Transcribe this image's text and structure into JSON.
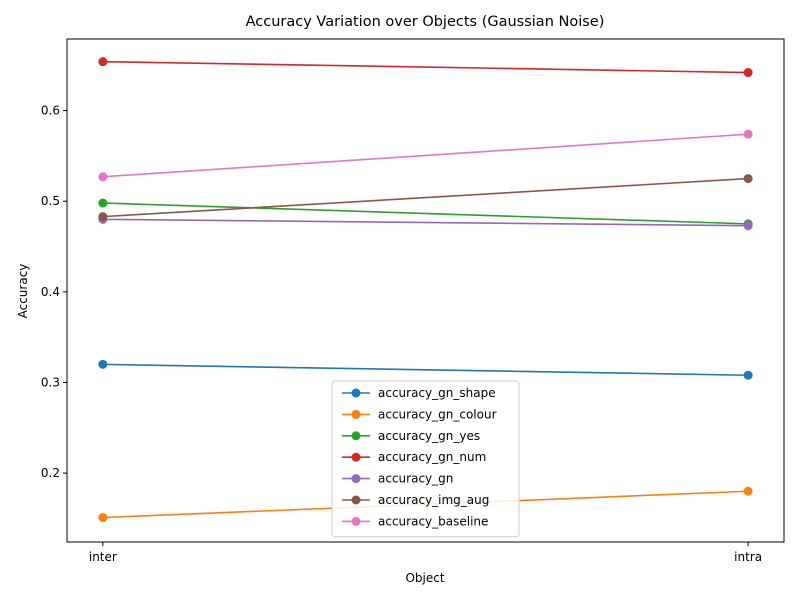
{
  "chart_data": {
    "type": "line",
    "title": "Accuracy Variation over Objects (Gaussian Noise)",
    "xlabel": "Object",
    "ylabel": "Accuracy",
    "categories": [
      "inter",
      "intra"
    ],
    "ylim": [
      0.124,
      0.679
    ],
    "yticks": [
      0.2,
      0.3,
      0.4,
      0.5,
      0.6
    ],
    "ytick_labels": [
      "0.2",
      "0.3",
      "0.4",
      "0.5",
      "0.6"
    ],
    "grid": false,
    "legend_position": "bottom-center",
    "series": [
      {
        "name": "accuracy_gn_shape",
        "color": "#1f77b4",
        "values": [
          0.32,
          0.308
        ]
      },
      {
        "name": "accuracy_gn_colour",
        "color": "#ff7f0e",
        "values": [
          0.151,
          0.18
        ]
      },
      {
        "name": "accuracy_gn_yes",
        "color": "#2ca02c",
        "values": [
          0.498,
          0.475
        ]
      },
      {
        "name": "accuracy_gn_num",
        "color": "#d62728",
        "values": [
          0.654,
          0.642
        ]
      },
      {
        "name": "accuracy_gn",
        "color": "#9467bd",
        "values": [
          0.48,
          0.473
        ]
      },
      {
        "name": "accuracy_img_aug",
        "color": "#8c564b",
        "values": [
          0.483,
          0.525
        ]
      },
      {
        "name": "accuracy_baseline",
        "color": "#e377c2",
        "values": [
          0.527,
          0.574
        ]
      }
    ]
  }
}
